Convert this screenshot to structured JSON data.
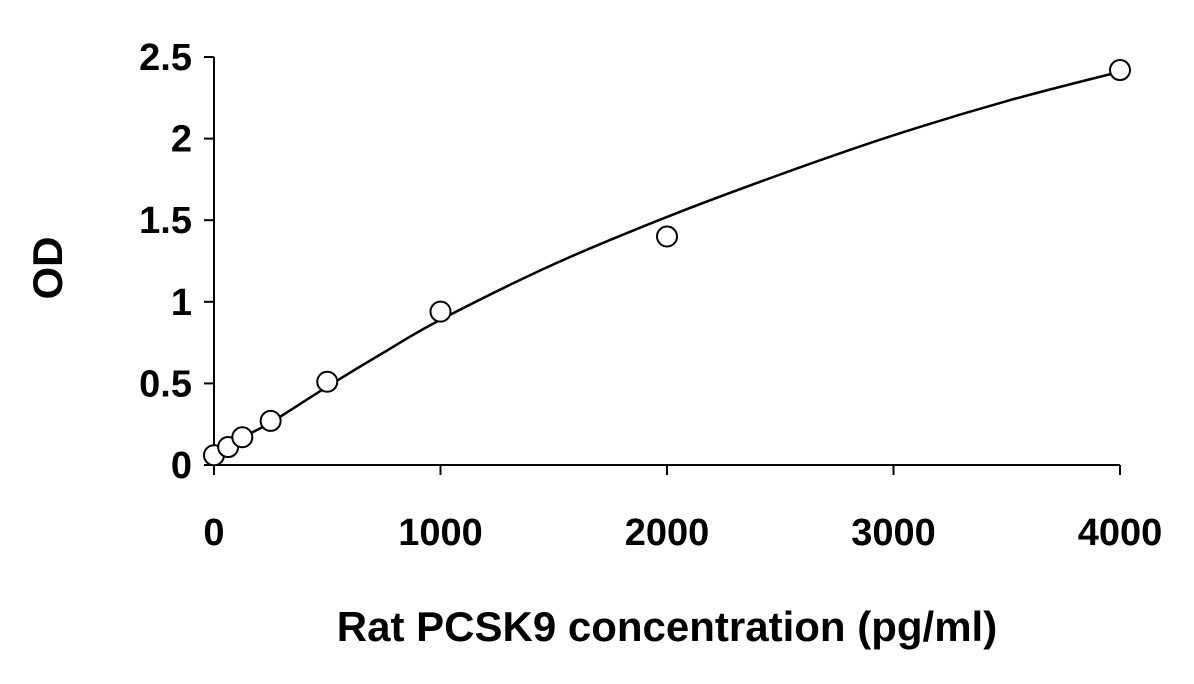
{
  "chart_data": {
    "type": "scatter",
    "title": "",
    "xlabel": "Rat PCSK9 concentration (pg/ml)",
    "ylabel": "OD",
    "xlim": [
      0,
      4000
    ],
    "ylim": [
      0,
      2.5
    ],
    "x_ticks": [
      0,
      1000,
      2000,
      3000,
      4000
    ],
    "x_tick_labels": [
      "0",
      "1000",
      "2000",
      "3000",
      "4000"
    ],
    "y_ticks": [
      0,
      0.5,
      1,
      1.5,
      2,
      2.5
    ],
    "y_tick_labels": [
      "0",
      "0.5",
      "1",
      "1.5",
      "2",
      "2.5"
    ],
    "grid": false,
    "legend": "none",
    "series": [
      {
        "marker": "open-circle",
        "x": [
          0,
          62.5,
          125,
          250,
          500,
          1000,
          2000,
          4000
        ],
        "y": [
          0.06,
          0.11,
          0.17,
          0.27,
          0.51,
          0.94,
          1.4,
          2.42
        ]
      }
    ],
    "fit_curve": {
      "x": [
        0,
        62.5,
        125,
        250,
        500,
        750,
        1000,
        1500,
        2000,
        2500,
        3000,
        3500,
        4000
      ],
      "y": [
        0.065,
        0.12,
        0.17,
        0.26,
        0.48,
        0.69,
        0.89,
        1.23,
        1.52,
        1.78,
        2.02,
        2.23,
        2.41
      ]
    },
    "colors": {
      "marker_stroke": "#000000",
      "marker_fill": "#ffffff",
      "line": "#000000"
    }
  }
}
